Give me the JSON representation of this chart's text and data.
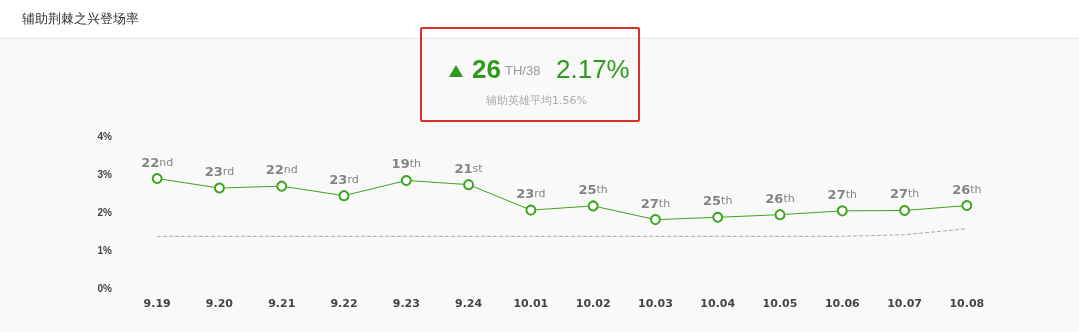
{
  "chart_data": {
    "type": "line",
    "title": "辅助荆棘之兴登场率",
    "annotations": [
      "26",
      "TH/38",
      "2.17%",
      "辅助英雄平均1.56%",
      {
        "text": "22nd",
        "x": "9.19",
        "y": 2.88
      },
      {
        "text": "23rd",
        "x": "9.20",
        "y": 2.63
      },
      {
        "text": "22nd",
        "x": "9.21",
        "y": 2.68
      },
      {
        "text": "23rd",
        "x": "9.22",
        "y": 2.43
      },
      {
        "text": "19th",
        "x": "9.23",
        "y": 2.83
      },
      {
        "text": "21st",
        "x": "9.24",
        "y": 2.72
      },
      {
        "text": "23rd",
        "x": "10.01",
        "y": 2.05
      },
      {
        "text": "25th",
        "x": "10.02",
        "y": 2.16
      },
      {
        "text": "27th",
        "x": "10.03",
        "y": 1.8
      },
      {
        "text": "25th",
        "x": "10.04",
        "y": 1.86
      },
      {
        "text": "26th",
        "x": "10.05",
        "y": 1.93
      },
      {
        "text": "27th",
        "x": "10.06",
        "y": 2.03
      },
      {
        "text": "27th",
        "x": "10.07",
        "y": 2.04
      },
      {
        "text": "26th",
        "x": "10.08",
        "y": 2.17
      }
    ],
    "categories": [
      "9.19",
      "9.20",
      "9.21",
      "9.22",
      "9.23",
      "9.24",
      "10.01",
      "10.02",
      "10.03",
      "10.04",
      "10.05",
      "10.06",
      "10.07",
      "10.08"
    ],
    "series": [
      {
        "color": "#3ca51e",
        "marker": "circle",
        "line_style": "solid",
        "values": [
          2.88,
          2.63,
          2.68,
          2.43,
          2.83,
          2.72,
          2.05,
          2.16,
          1.8,
          1.86,
          1.93,
          2.03,
          2.04,
          2.17
        ]
      },
      {
        "color": "#aaaaaa",
        "marker": "none",
        "line_style": "dashed",
        "values": [
          1.36,
          1.36,
          1.36,
          1.36,
          1.36,
          1.36,
          1.36,
          1.36,
          1.36,
          1.36,
          1.36,
          1.36,
          1.4,
          1.56
        ]
      }
    ],
    "ylim": [
      0,
      4
    ],
    "yticks": [
      {
        "value": 0,
        "label": "0%"
      },
      {
        "value": 1,
        "label": "1%"
      },
      {
        "value": 2,
        "label": "2%"
      },
      {
        "value": 3,
        "label": "3%"
      },
      {
        "value": 4,
        "label": "4%"
      }
    ],
    "grid": false
  }
}
